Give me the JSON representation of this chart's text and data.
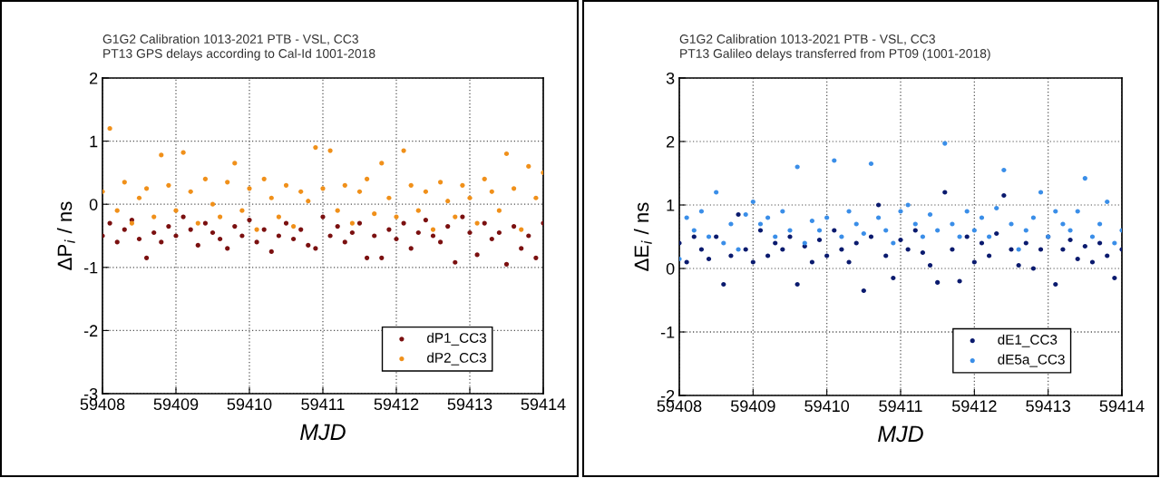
{
  "chart_data": [
    {
      "type": "scatter",
      "title": "G1G2 Calibration 1013-2021 PTB - VSL, CC3\nPT13 GPS delays according to Cal-Id 1001-2018",
      "xlabel": "MJD",
      "ylabel": "ΔP$_{i}$ / ns",
      "x": [
        59408.0,
        59408.1,
        59408.2,
        59408.3,
        59408.4,
        59408.5,
        59408.6,
        59408.7,
        59408.8,
        59408.9,
        59409.0,
        59409.1,
        59409.2,
        59409.3,
        59409.4,
        59409.5,
        59409.6,
        59409.7,
        59409.8,
        59409.9,
        59410.0,
        59410.1,
        59410.2,
        59410.3,
        59410.4,
        59410.5,
        59410.6,
        59410.7,
        59410.8,
        59410.9,
        59411.0,
        59411.1,
        59411.2,
        59411.3,
        59411.4,
        59411.5,
        59411.6,
        59411.7,
        59411.8,
        59411.9,
        59412.0,
        59412.1,
        59412.2,
        59412.3,
        59412.4,
        59412.5,
        59412.6,
        59412.7,
        59412.8,
        59412.9,
        59413.0,
        59413.1,
        59413.2,
        59413.3,
        59413.4,
        59413.5,
        59413.6,
        59413.7,
        59413.8,
        59413.9,
        59414.0
      ],
      "series": [
        {
          "name": "dP1_CC3",
          "color": "#7b1010",
          "values": [
            -0.5,
            -0.3,
            -0.6,
            -0.4,
            -0.25,
            -0.55,
            -0.85,
            -0.45,
            -0.6,
            -0.35,
            -0.5,
            -0.2,
            -0.4,
            -0.65,
            -0.3,
            -0.45,
            -0.55,
            -0.7,
            -0.35,
            -0.5,
            -0.25,
            -0.6,
            -0.4,
            -0.75,
            -0.5,
            -0.3,
            -0.55,
            -0.4,
            -0.65,
            -0.7,
            -0.2,
            -0.5,
            -0.35,
            -0.6,
            -0.45,
            -0.3,
            -0.85,
            -0.5,
            -0.85,
            -0.4,
            -0.55,
            -0.3,
            -0.7,
            -0.45,
            -0.25,
            -0.5,
            -0.6,
            -0.35,
            -0.92,
            -0.2,
            -0.45,
            -0.8,
            -0.3,
            -0.55,
            -0.45,
            -0.95,
            -0.35,
            -0.7,
            -0.5,
            -0.85,
            -0.3
          ]
        },
        {
          "name": "dP2_CC3",
          "color": "#f0901a",
          "values": [
            0.2,
            1.2,
            -0.1,
            0.35,
            -0.3,
            0.1,
            0.25,
            -0.2,
            0.78,
            0.3,
            -0.1,
            0.82,
            0.2,
            -0.3,
            0.4,
            0.0,
            -0.2,
            0.35,
            0.65,
            -0.1,
            0.25,
            -0.4,
            0.4,
            0.1,
            -0.2,
            0.3,
            -0.35,
            0.2,
            0.05,
            0.9,
            0.25,
            0.85,
            -0.1,
            0.3,
            -0.3,
            0.2,
            0.4,
            -0.15,
            0.65,
            0.1,
            -0.2,
            0.85,
            0.3,
            -0.1,
            0.2,
            -0.4,
            0.35,
            0.05,
            -0.2,
            0.3,
            0.1,
            -0.3,
            0.4,
            0.2,
            -0.1,
            0.8,
            0.25,
            -0.4,
            0.6,
            0.1,
            0.5
          ]
        }
      ],
      "xlim": [
        59408,
        59414
      ],
      "xticks": [
        59408,
        59409,
        59410,
        59411,
        59412,
        59413,
        59414
      ],
      "ylim": [
        -3,
        2
      ],
      "yticks": [
        -3,
        -2,
        -1,
        0,
        1,
        2
      ],
      "grid": true,
      "legend": "bottom right",
      "marker": "circle"
    },
    {
      "type": "scatter",
      "title": "G1G2 Calibration 1013-2021 PTB - VSL, CC3\nPT13 Galileo delays transferred from PT09 (1001-2018)",
      "xlabel": "MJD",
      "ylabel": "ΔE$_{i}$ / ns",
      "x": [
        59408.0,
        59408.1,
        59408.2,
        59408.3,
        59408.4,
        59408.5,
        59408.6,
        59408.7,
        59408.8,
        59408.9,
        59409.0,
        59409.1,
        59409.2,
        59409.3,
        59409.4,
        59409.5,
        59409.6,
        59409.7,
        59409.8,
        59409.9,
        59410.0,
        59410.1,
        59410.2,
        59410.3,
        59410.4,
        59410.5,
        59410.6,
        59410.7,
        59410.8,
        59410.9,
        59411.0,
        59411.1,
        59411.2,
        59411.3,
        59411.4,
        59411.5,
        59411.6,
        59411.7,
        59411.8,
        59411.9,
        59412.0,
        59412.1,
        59412.2,
        59412.3,
        59412.4,
        59412.5,
        59412.6,
        59412.7,
        59412.8,
        59412.9,
        59413.0,
        59413.1,
        59413.2,
        59413.3,
        59413.4,
        59413.5,
        59413.6,
        59413.7,
        59413.8,
        59413.9,
        59414.0
      ],
      "series": [
        {
          "name": "dE1_CC3",
          "color": "#0a1a6e",
          "values": [
            0.4,
            0.1,
            0.5,
            0.3,
            0.15,
            0.5,
            -0.25,
            0.2,
            0.85,
            0.3,
            0.1,
            0.6,
            0.2,
            0.4,
            0.3,
            0.5,
            -0.25,
            0.35,
            0.1,
            0.45,
            0.2,
            0.6,
            0.3,
            0.1,
            0.4,
            -0.35,
            0.5,
            1.0,
            0.2,
            -0.15,
            0.45,
            0.3,
            0.6,
            0.25,
            0.05,
            -0.22,
            1.2,
            0.3,
            -0.2,
            0.5,
            0.1,
            0.4,
            0.2,
            0.55,
            1.15,
            0.3,
            0.05,
            0.4,
            0.0,
            0.3,
            0.5,
            -0.25,
            0.3,
            0.45,
            0.15,
            0.35,
            0.1,
            0.4,
            0.2,
            -0.15,
            0.3
          ]
        },
        {
          "name": "dE5a_CC3",
          "color": "#3a8ee8",
          "values": [
            0.15,
            0.8,
            0.6,
            0.9,
            0.5,
            1.2,
            0.4,
            0.7,
            0.3,
            0.85,
            1.05,
            0.7,
            0.8,
            0.5,
            0.9,
            0.6,
            1.6,
            0.4,
            0.75,
            0.6,
            0.8,
            1.7,
            0.5,
            0.9,
            0.7,
            0.55,
            1.65,
            0.8,
            0.6,
            0.4,
            0.9,
            1.0,
            0.7,
            0.5,
            0.85,
            0.6,
            1.97,
            0.7,
            0.5,
            0.9,
            0.6,
            0.8,
            0.5,
            0.95,
            1.55,
            0.7,
            0.3,
            0.6,
            0.8,
            1.2,
            0.5,
            0.9,
            0.7,
            0.6,
            0.9,
            1.42,
            0.5,
            0.7,
            1.05,
            0.4,
            0.6
          ]
        }
      ],
      "xlim": [
        59408,
        59414
      ],
      "xticks": [
        59408,
        59409,
        59410,
        59411,
        59412,
        59413,
        59414
      ],
      "ylim": [
        -2,
        3
      ],
      "yticks": [
        -2,
        -1,
        0,
        1,
        2,
        3
      ],
      "grid": true,
      "legend": "bottom right",
      "marker": "circle"
    }
  ]
}
